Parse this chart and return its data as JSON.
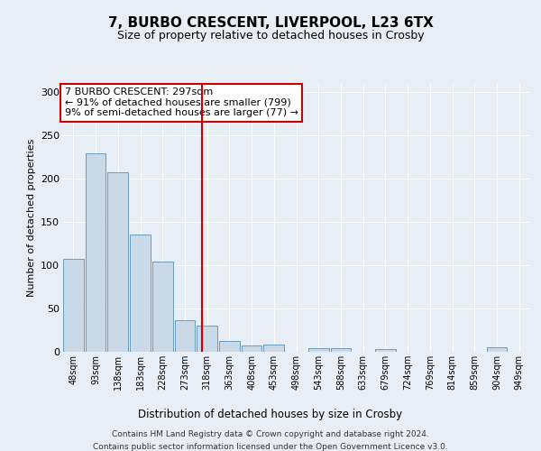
{
  "title1": "7, BURBO CRESCENT, LIVERPOOL, L23 6TX",
  "title2": "Size of property relative to detached houses in Crosby",
  "xlabel": "Distribution of detached houses by size in Crosby",
  "ylabel": "Number of detached properties",
  "categories": [
    "48sqm",
    "93sqm",
    "138sqm",
    "183sqm",
    "228sqm",
    "273sqm",
    "318sqm",
    "363sqm",
    "408sqm",
    "453sqm",
    "498sqm",
    "543sqm",
    "588sqm",
    "633sqm",
    "679sqm",
    "724sqm",
    "769sqm",
    "814sqm",
    "859sqm",
    "904sqm",
    "949sqm"
  ],
  "values": [
    107,
    229,
    207,
    135,
    104,
    36,
    30,
    13,
    7,
    8,
    0,
    4,
    4,
    0,
    3,
    0,
    0,
    0,
    0,
    5,
    0
  ],
  "bar_color": "#c9d9e8",
  "bar_edge_color": "#5a8db5",
  "vline_x": 5.78,
  "vline_color": "#cc0000",
  "annotation_text": "7 BURBO CRESCENT: 297sqm\n← 91% of detached houses are smaller (799)\n9% of semi-detached houses are larger (77) →",
  "annotation_box_color": "#ffffff",
  "annotation_box_edge": "#cc0000",
  "ylim": [
    0,
    310
  ],
  "yticks": [
    0,
    50,
    100,
    150,
    200,
    250,
    300
  ],
  "footer1": "Contains HM Land Registry data © Crown copyright and database right 2024.",
  "footer2": "Contains public sector information licensed under the Open Government Licence v3.0.",
  "bg_color": "#e8eef5",
  "plot_bg_color": "#e8eef5"
}
